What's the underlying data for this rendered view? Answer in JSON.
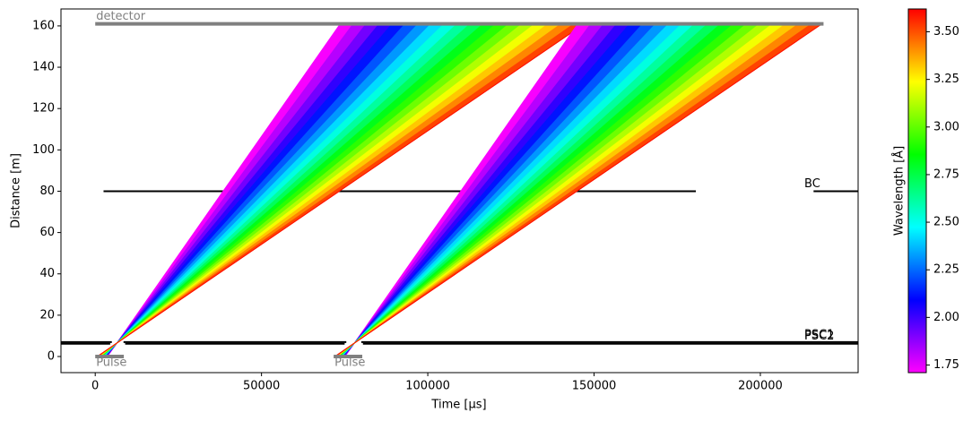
{
  "chart_data": {
    "type": "tof",
    "xlabel": "Time [µs]",
    "ylabel": "Distance [m]",
    "xlim": [
      -10300,
      229400
    ],
    "ylim": [
      -7.8,
      168.2
    ],
    "xticks": [
      0,
      50000,
      100000,
      150000,
      200000
    ],
    "yticks": [
      0,
      20,
      40,
      60,
      80,
      100,
      120,
      140,
      160
    ],
    "colorbar": {
      "label": "Wavelength [Å]",
      "clim": [
        1.71,
        3.62
      ],
      "colormap": [
        "#ff00ff",
        "#0000ff",
        "#00ffff",
        "#00ff00",
        "#ffff00",
        "#ff0000"
      ],
      "ticks": [
        1.75,
        {
          "value": 2.0,
          "label": "2.00"
        },
        2.25,
        {
          "value": 2.5,
          "label": "2.50"
        },
        2.75,
        {
          "value": 3.0,
          "label": "3.00"
        },
        3.25,
        {
          "value": 3.5,
          "label": "3.50"
        }
      ]
    },
    "detector": {
      "label": "detector",
      "distance": 161,
      "x": [
        0,
        219000
      ],
      "color": "#808080"
    },
    "choppers": [
      {
        "label": "PSC1",
        "distance": 7.0,
        "closed": [
          [
            -10300,
            5000
          ],
          [
            8500,
            75500
          ],
          [
            80000,
            229400
          ]
        ],
        "color": "#000000"
      },
      {
        "label": "PSC2",
        "distance": 6.2,
        "closed": [
          [
            -10300,
            4500
          ],
          [
            9000,
            75000
          ],
          [
            80500,
            229400
          ]
        ],
        "color": "#000000"
      },
      {
        "label": "BC",
        "distance": 80,
        "closed": [
          [
            2500,
            180600
          ],
          [
            216000,
            229400
          ]
        ],
        "color": "#000000"
      }
    ],
    "pulses": [
      {
        "label": "Pulse",
        "distance": 0,
        "x": [
          0,
          8600
        ],
        "color": "#808080",
        "rays": [
          {
            "wavelength": 1.72,
            "x": [
              3674,
              73675
            ]
          },
          {
            "wavelength": 1.82,
            "x": [
              3510,
              77580
            ]
          },
          {
            "wavelength": 1.92,
            "x": [
              3345,
              81486
            ]
          },
          {
            "wavelength": 2.02,
            "x": [
              3181,
              85391
            ]
          },
          {
            "wavelength": 2.12,
            "x": [
              3017,
              89297
            ]
          },
          {
            "wavelength": 2.22,
            "x": [
              2853,
              93202
            ]
          },
          {
            "wavelength": 2.32,
            "x": [
              2688,
              97108
            ]
          },
          {
            "wavelength": 2.42,
            "x": [
              2524,
              101013
            ]
          },
          {
            "wavelength": 2.52,
            "x": [
              2360,
              104919
            ]
          },
          {
            "wavelength": 2.62,
            "x": [
              2195,
              108824
            ]
          },
          {
            "wavelength": 2.72,
            "x": [
              2031,
              112730
            ]
          },
          {
            "wavelength": 2.82,
            "x": [
              1867,
              116635
            ]
          },
          {
            "wavelength": 2.92,
            "x": [
              1702,
              120541
            ]
          },
          {
            "wavelength": 3.02,
            "x": [
              1538,
              124446
            ]
          },
          {
            "wavelength": 3.12,
            "x": [
              1374,
              128352
            ]
          },
          {
            "wavelength": 3.22,
            "x": [
              1210,
              132257
            ]
          },
          {
            "wavelength": 3.32,
            "x": [
              1045,
              136163
            ]
          },
          {
            "wavelength": 3.42,
            "x": [
              881,
              140068
            ]
          },
          {
            "wavelength": 3.52,
            "x": [
              717,
              143974
            ]
          },
          {
            "wavelength": 3.6,
            "x": [
              585,
              147098
            ]
          }
        ]
      },
      {
        "label": "Pulse",
        "distance": 0,
        "x": [
          71700,
          80300
        ],
        "color": "#808080",
        "rays": [
          {
            "wavelength": 1.72,
            "x": [
              75104,
              145105
            ]
          },
          {
            "wavelength": 1.82,
            "x": [
              74940,
              149010
            ]
          },
          {
            "wavelength": 1.92,
            "x": [
              74775,
              152916
            ]
          },
          {
            "wavelength": 2.02,
            "x": [
              74611,
              156821
            ]
          },
          {
            "wavelength": 2.12,
            "x": [
              74447,
              160727
            ]
          },
          {
            "wavelength": 2.22,
            "x": [
              74283,
              164632
            ]
          },
          {
            "wavelength": 2.32,
            "x": [
              74118,
              168538
            ]
          },
          {
            "wavelength": 2.42,
            "x": [
              73954,
              172443
            ]
          },
          {
            "wavelength": 2.52,
            "x": [
              73790,
              176349
            ]
          },
          {
            "wavelength": 2.62,
            "x": [
              73625,
              180254
            ]
          },
          {
            "wavelength": 2.72,
            "x": [
              73461,
              184160
            ]
          },
          {
            "wavelength": 2.82,
            "x": [
              73297,
              188065
            ]
          },
          {
            "wavelength": 2.92,
            "x": [
              73132,
              191971
            ]
          },
          {
            "wavelength": 3.02,
            "x": [
              72968,
              195876
            ]
          },
          {
            "wavelength": 3.12,
            "x": [
              72804,
              199782
            ]
          },
          {
            "wavelength": 3.22,
            "x": [
              72640,
              203687
            ]
          },
          {
            "wavelength": 3.32,
            "x": [
              72475,
              207593
            ]
          },
          {
            "wavelength": 3.42,
            "x": [
              72311,
              211498
            ]
          },
          {
            "wavelength": 3.52,
            "x": [
              72147,
              215404
            ]
          },
          {
            "wavelength": 3.6,
            "x": [
              72015,
              218528
            ]
          }
        ]
      }
    ]
  }
}
